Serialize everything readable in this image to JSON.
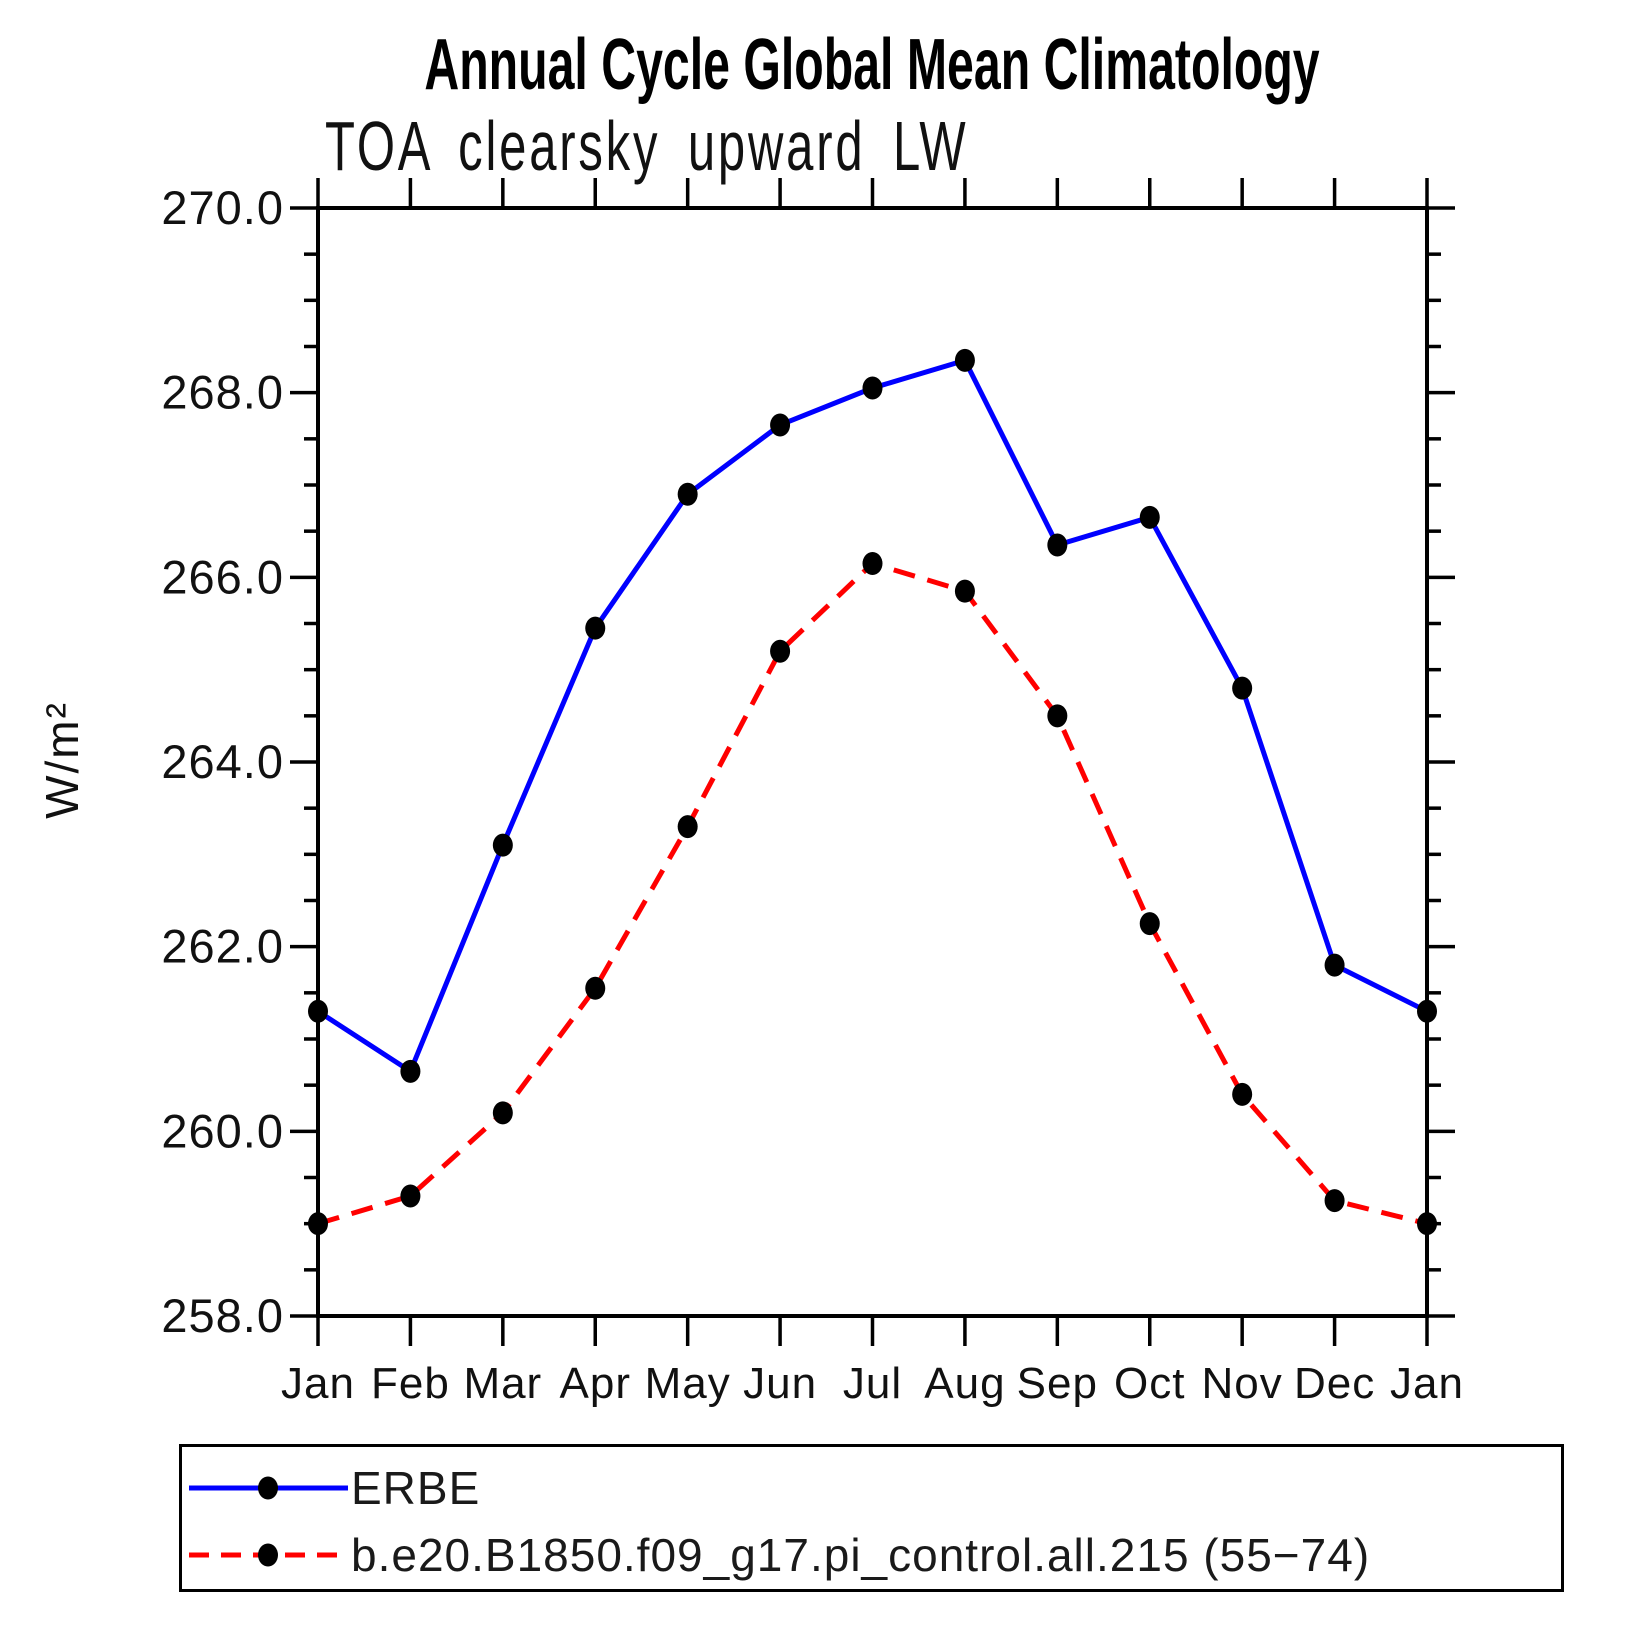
{
  "chart_data": {
    "type": "line",
    "title": "Annual Cycle Global Mean Climatology",
    "subtitle": "TOA clearsky upward LW",
    "ylabel": "W/m²",
    "x_categories": [
      "Jan",
      "Feb",
      "Mar",
      "Apr",
      "May",
      "Jun",
      "Jul",
      "Aug",
      "Sep",
      "Oct",
      "Nov",
      "Dec",
      "Jan"
    ],
    "ylim": [
      258.0,
      270.0
    ],
    "ytick_major_interval": 2.0,
    "ytick_minor_interval": 0.5,
    "ytick_labels": [
      {
        "value": 270.0,
        "label": "270.0"
      },
      {
        "value": 268.0,
        "label": "268.0"
      },
      {
        "value": 266.0,
        "label": "266.0"
      },
      {
        "value": 264.0,
        "label": "264.0"
      },
      {
        "value": 262.0,
        "label": "262.0"
      },
      {
        "value": 260.0,
        "label": "260.0"
      },
      {
        "value": 258.0,
        "label": "258.0"
      }
    ],
    "grid": false,
    "legend_position": "bottom-left",
    "axis_color": "#000000",
    "marker": "filled-circle",
    "marker_color": "#000000",
    "series": [
      {
        "name": "ERBE",
        "color": "#0000ff",
        "line_style": "solid",
        "values": [
          261.3,
          260.65,
          263.1,
          265.45,
          266.9,
          267.65,
          268.05,
          268.35,
          266.35,
          266.65,
          264.8,
          261.8,
          261.3
        ]
      },
      {
        "name": "b.e20.B1850.f09_g17.pi_control.all.215 (55−74)",
        "color": "#ff0000",
        "line_style": "dashed",
        "values": [
          259.0,
          259.3,
          260.2,
          261.55,
          263.3,
          265.2,
          266.15,
          265.85,
          264.5,
          262.25,
          260.4,
          259.25,
          259.0
        ]
      }
    ]
  }
}
